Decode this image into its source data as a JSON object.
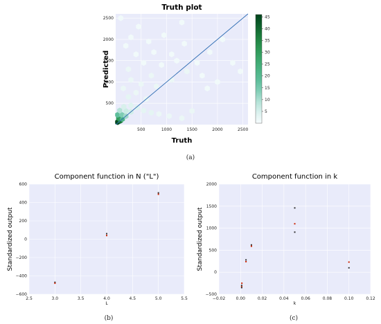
{
  "chart_data": [
    {
      "type": "heatmap",
      "title": "Truth plot",
      "xlabel": "Truth",
      "ylabel": "Predicted",
      "caption": "(a)",
      "xlim": [
        0,
        2600
      ],
      "ylim": [
        0,
        2600
      ],
      "xticks": [
        500,
        1000,
        1500,
        2000,
        2500
      ],
      "yticks": [
        500,
        1000,
        1500,
        2000,
        2500
      ],
      "colorbar": {
        "range": [
          0,
          46
        ],
        "ticks": [
          5,
          10,
          15,
          20,
          25,
          30,
          35,
          40,
          45
        ]
      },
      "reference_line": {
        "from": [
          0,
          0
        ],
        "to": [
          2600,
          2600
        ],
        "color": "#2f6db3"
      },
      "colors": {
        "background": "#e9ebfa",
        "low": "#ffffff",
        "high": "#00441b"
      },
      "bins": [
        {
          "x": 40,
          "y": 60,
          "v": 45
        },
        {
          "x": 90,
          "y": 90,
          "v": 38
        },
        {
          "x": 60,
          "y": 150,
          "v": 30
        },
        {
          "x": 130,
          "y": 130,
          "v": 22
        },
        {
          "x": 40,
          "y": 230,
          "v": 18
        },
        {
          "x": 120,
          "y": 230,
          "v": 14
        },
        {
          "x": 200,
          "y": 200,
          "v": 11
        },
        {
          "x": 80,
          "y": 330,
          "v": 9
        },
        {
          "x": 200,
          "y": 320,
          "v": 7
        },
        {
          "x": 300,
          "y": 300,
          "v": 6
        },
        {
          "x": 160,
          "y": 420,
          "v": 5
        },
        {
          "x": 300,
          "y": 450,
          "v": 4
        },
        {
          "x": 420,
          "y": 400,
          "v": 4
        },
        {
          "x": 550,
          "y": 330,
          "v": 3
        },
        {
          "x": 700,
          "y": 280,
          "v": 3
        },
        {
          "x": 850,
          "y": 250,
          "v": 2
        },
        {
          "x": 1050,
          "y": 200,
          "v": 2
        },
        {
          "x": 1300,
          "y": 150,
          "v": 2
        },
        {
          "x": 1500,
          "y": 320,
          "v": 2
        },
        {
          "x": 600,
          "y": 600,
          "v": 2
        },
        {
          "x": 250,
          "y": 650,
          "v": 3
        },
        {
          "x": 400,
          "y": 750,
          "v": 2
        },
        {
          "x": 150,
          "y": 850,
          "v": 2
        },
        {
          "x": 500,
          "y": 950,
          "v": 2
        },
        {
          "x": 800,
          "y": 900,
          "v": 2
        },
        {
          "x": 300,
          "y": 1050,
          "v": 2
        },
        {
          "x": 700,
          "y": 1150,
          "v": 2
        },
        {
          "x": 1100,
          "y": 1050,
          "v": 2
        },
        {
          "x": 1400,
          "y": 1250,
          "v": 2
        },
        {
          "x": 1700,
          "y": 1150,
          "v": 1
        },
        {
          "x": 2000,
          "y": 1000,
          "v": 1
        },
        {
          "x": 250,
          "y": 1300,
          "v": 2
        },
        {
          "x": 550,
          "y": 1450,
          "v": 1
        },
        {
          "x": 900,
          "y": 1400,
          "v": 1
        },
        {
          "x": 1200,
          "y": 1500,
          "v": 1
        },
        {
          "x": 1600,
          "y": 1450,
          "v": 1
        },
        {
          "x": 2300,
          "y": 1450,
          "v": 1
        },
        {
          "x": 400,
          "y": 1650,
          "v": 1
        },
        {
          "x": 750,
          "y": 1700,
          "v": 1
        },
        {
          "x": 1100,
          "y": 1650,
          "v": 1
        },
        {
          "x": 1850,
          "y": 1700,
          "v": 1
        },
        {
          "x": 200,
          "y": 1850,
          "v": 1
        },
        {
          "x": 650,
          "y": 1950,
          "v": 1
        },
        {
          "x": 300,
          "y": 2050,
          "v": 1
        },
        {
          "x": 950,
          "y": 2100,
          "v": 1
        },
        {
          "x": 1350,
          "y": 1900,
          "v": 1
        },
        {
          "x": 2100,
          "y": 2000,
          "v": 1
        },
        {
          "x": 450,
          "y": 2300,
          "v": 1
        },
        {
          "x": 1300,
          "y": 2400,
          "v": 1
        },
        {
          "x": 100,
          "y": 2500,
          "v": 1
        },
        {
          "x": 1800,
          "y": 850,
          "v": 1
        },
        {
          "x": 2450,
          "y": 1250,
          "v": 1
        }
      ]
    },
    {
      "type": "scatter",
      "title": "Component function in N (\"L\")",
      "xlabel": "L",
      "ylabel": "Standardized output",
      "caption": "(b)",
      "xlim": [
        2.5,
        5.5
      ],
      "ylim": [
        -600,
        600
      ],
      "xticks": [
        2.5,
        3.0,
        3.5,
        4.0,
        4.5,
        5.0,
        5.5
      ],
      "xtick_labels": [
        "2.5",
        "3.0",
        "3.5",
        "4.0",
        "4.5",
        "5.0",
        "5.5"
      ],
      "yticks": [
        -600,
        -400,
        -200,
        0,
        200,
        400,
        600
      ],
      "ytick_labels": [
        "−600",
        "−400",
        "−200",
        "0",
        "200",
        "400",
        "600"
      ],
      "grid": true,
      "colors": {
        "background": "#e9ebfa",
        "point_dark": "#333333",
        "point_red": "#cc2200"
      },
      "series": [
        {
          "points": [
            [
              3.0,
              -470
            ],
            [
              3.0,
              -480
            ],
            [
              4.0,
              60
            ],
            [
              4.0,
              40
            ],
            [
              5.0,
              505
            ],
            [
              5.0,
              490
            ]
          ]
        }
      ]
    },
    {
      "type": "scatter",
      "title": "Component function in k",
      "xlabel": "k",
      "ylabel": "Standardized output",
      "caption": "(c)",
      "xlim": [
        -0.02,
        0.12
      ],
      "ylim": [
        -500,
        2000
      ],
      "xticks": [
        -0.02,
        0.0,
        0.02,
        0.04,
        0.06,
        0.08,
        0.1,
        0.12
      ],
      "xtick_labels": [
        "−0.02",
        "0.00",
        "0.02",
        "0.04",
        "0.06",
        "0.08",
        "0.10",
        "0.12"
      ],
      "yticks": [
        -500,
        0,
        500,
        1000,
        1500,
        2000
      ],
      "ytick_labels": [
        "−500",
        "0",
        "500",
        "1000",
        "1500",
        "2000"
      ],
      "grid": true,
      "colors": {
        "background": "#e9ebfa",
        "point_dark": "#333333",
        "point_red": "#cc2200"
      },
      "series": [
        {
          "points": [
            [
              0.001,
              -300
            ],
            [
              0.001,
              -330
            ],
            [
              0.001,
              -350
            ],
            [
              0.0012,
              -250
            ],
            [
              0.005,
              280
            ],
            [
              0.005,
              240
            ],
            [
              0.01,
              620
            ],
            [
              0.01,
              590
            ],
            [
              0.05,
              1460
            ],
            [
              0.05,
              1100
            ],
            [
              0.05,
              910
            ],
            [
              0.1,
              230
            ],
            [
              0.1,
              100
            ]
          ]
        }
      ]
    }
  ]
}
